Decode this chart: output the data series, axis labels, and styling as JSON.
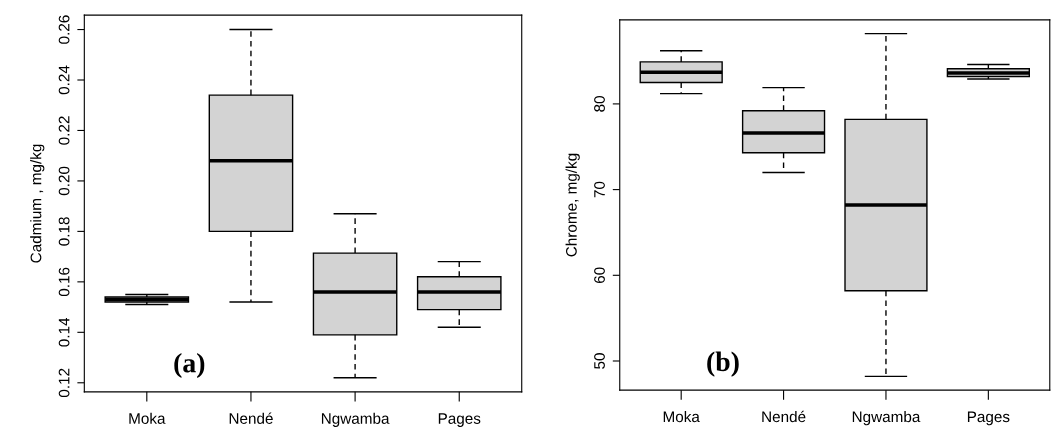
{
  "chart_data": [
    {
      "type": "box",
      "ylabel": "Cadmium , mg/kg",
      "annotations": [
        "(a)"
      ],
      "categories": [
        "Moka",
        "Nendé",
        "Ngwamba",
        "Pages"
      ],
      "color": "#d3d3d3",
      "ylim": [
        0.1164,
        0.2657
      ],
      "yticks": [
        0.12,
        0.14,
        0.16,
        0.18,
        {
          "value": 0.2,
          "label": "0.20"
        },
        0.22,
        0.24,
        0.26
      ],
      "grid": false,
      "boxes": [
        {
          "low": 0.151,
          "q1": 0.152,
          "median": 0.153,
          "q3": 0.154,
          "high": 0.155
        },
        {
          "low": 0.152,
          "q1": 0.18,
          "median": 0.208,
          "q3": 0.234,
          "high": 0.26
        },
        {
          "low": 0.122,
          "q1": 0.139,
          "median": 0.156,
          "q3": 0.1714,
          "high": 0.187
        },
        {
          "low": 0.142,
          "q1": 0.149,
          "median": 0.156,
          "q3": 0.162,
          "high": 0.168
        }
      ]
    },
    {
      "type": "box",
      "ylabel": "Chrome, mg/kg",
      "annotations": [
        "(b)"
      ],
      "categories": [
        "Moka",
        "Nendé",
        "Ngwamba",
        "Pages"
      ],
      "color": "#d3d3d3",
      "ylim": [
        46.6,
        89.8
      ],
      "yticks": [
        50,
        60,
        70,
        80
      ],
      "grid": false,
      "boxes": [
        {
          "low": 81.2,
          "q1": 82.5,
          "median": 83.7,
          "q3": 84.9,
          "high": 86.2
        },
        {
          "low": 72.0,
          "q1": 74.3,
          "median": 76.6,
          "q3": 79.2,
          "high": 81.9
        },
        {
          "low": 48.2,
          "q1": 58.2,
          "median": 68.2,
          "q3": 78.2,
          "high": 88.2
        },
        {
          "low": 82.9,
          "q1": 83.2,
          "median": 83.6,
          "q3": 84.1,
          "high": 84.6
        }
      ]
    }
  ]
}
